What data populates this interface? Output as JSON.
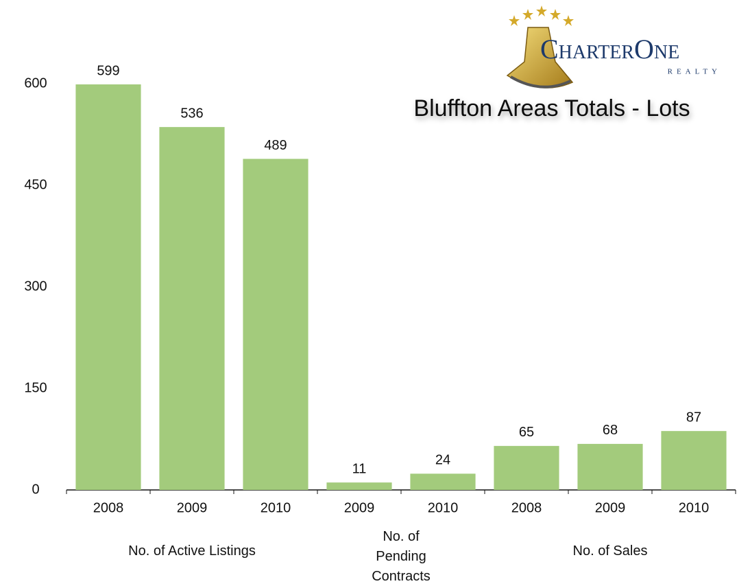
{
  "chart_data": {
    "type": "bar",
    "title": "Bluffton Areas Totals - Lots",
    "logo": {
      "name": "CharterOne",
      "sub": "REALTY"
    },
    "groups": [
      {
        "name": "No. of Active Listings",
        "categories": [
          "2008",
          "2009",
          "2010"
        ],
        "values": [
          599,
          536,
          489
        ]
      },
      {
        "name": "No. of Pending Contracts",
        "categories": [
          "2009",
          "2010"
        ],
        "values": [
          11,
          24
        ]
      },
      {
        "name": "No. of Sales",
        "categories": [
          "2008",
          "2009",
          "2010"
        ],
        "values": [
          65,
          68,
          87
        ]
      }
    ],
    "color": "#a3cb7c",
    "ylim": [
      0,
      600
    ],
    "yticks": [
      0,
      150,
      300,
      450,
      600
    ],
    "grid": false
  }
}
